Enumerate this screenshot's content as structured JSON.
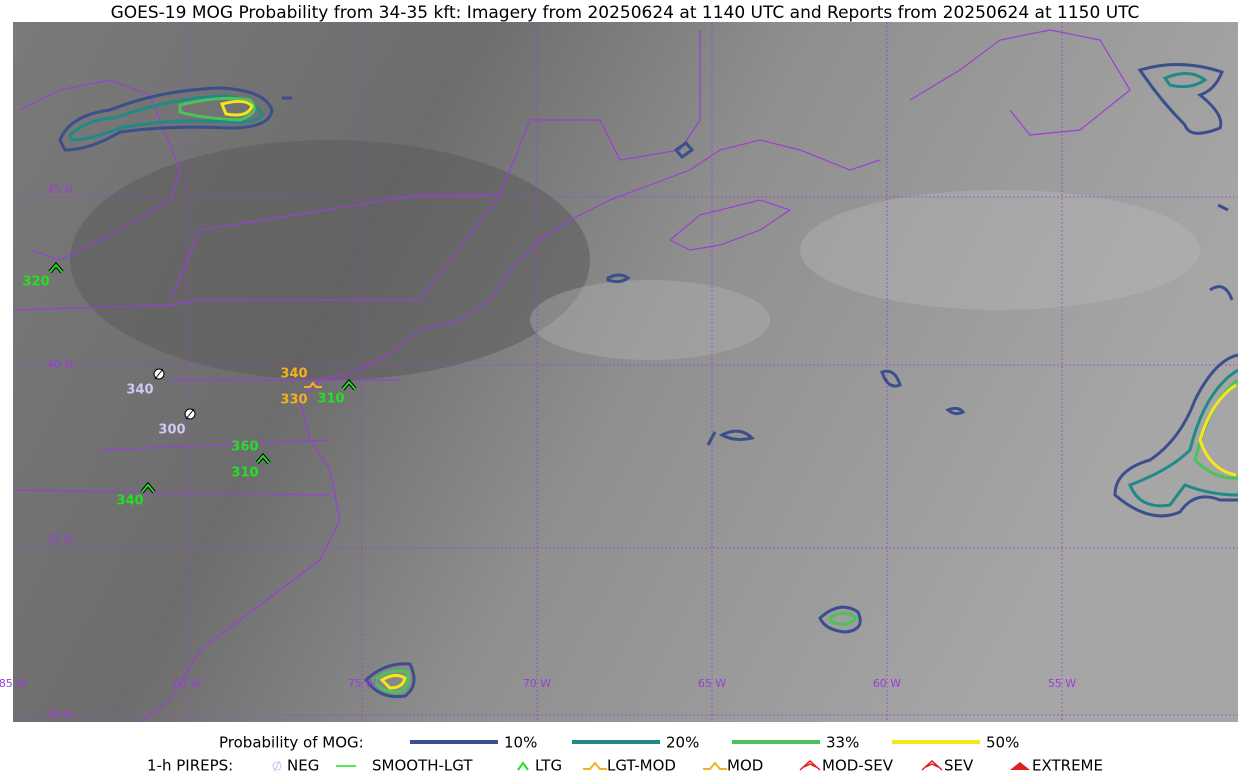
{
  "title": "GOES-19 MOG Probability from 34-35 kft: Imagery from 20250624 at 1140 UTC and Reports from 20250624 at 1150 UTC",
  "grid_labels": {
    "lat": [
      "45 N",
      "40 N",
      "35 N",
      "30 N"
    ],
    "lon": [
      "85 W",
      "80 W",
      "75 W",
      "70 W",
      "65 W",
      "60 W",
      "55 W"
    ]
  },
  "reports": [
    "320",
    "340",
    "300",
    "340",
    "330",
    "310",
    "360",
    "310",
    "340"
  ],
  "legend": {
    "probability": {
      "title": "Probability of MOG:",
      "items": [
        "10%",
        "20%",
        "33%",
        "50%"
      ]
    },
    "pireps": {
      "title": "1-h PIREPS:",
      "items": [
        "NEG",
        "SMOOTH-LGT",
        "LTG",
        "LGT-MOD",
        "MOD",
        "MOD-SEV",
        "SEV",
        "EXTREME"
      ]
    }
  }
}
